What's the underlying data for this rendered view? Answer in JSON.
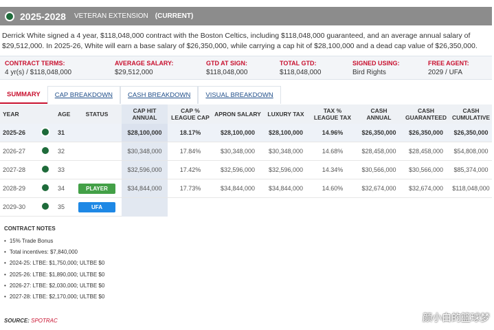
{
  "header": {
    "years": "2025-2028",
    "type": "VETERAN EXTENSION",
    "status": "(CURRENT)"
  },
  "description": "Derrick White signed a 4 year, $118,048,000 contract with the Boston Celtics, including $118,048,000 guaranteed, and an average annual salary of $29,512,000. In 2025-26, White will earn a base salary of $26,350,000, while carrying a cap hit of $28,100,000 and a dead cap value of $26,350,000.",
  "terms": [
    {
      "label": "CONTRACT TERMS:",
      "value": "4 yr(s) / $118,048,000"
    },
    {
      "label": "AVERAGE SALARY:",
      "value": "$29,512,000"
    },
    {
      "label": "GTD AT SIGN:",
      "value": "$118,048,000"
    },
    {
      "label": "TOTAL GTD:",
      "value": "$118,048,000"
    },
    {
      "label": "SIGNED USING:",
      "value": "Bird Rights"
    },
    {
      "label": "FREE AGENT:",
      "value": "2029 / UFA"
    }
  ],
  "tabs": [
    "SUMMARY",
    "CAP BREAKDOWN",
    "CASH BREAKDOWN",
    "VISUAL BREAKDOWN"
  ],
  "table": {
    "columns": [
      "YEAR",
      "AGE",
      "STATUS",
      "CAP HIT\nANNUAL",
      "CAP %\nLEAGUE CAP",
      "APRON SALARY",
      "LUXURY TAX",
      "TAX %\nLEAGUE TAX",
      "CASH\nANNUAL",
      "CASH\nGUARANTEED",
      "CASH\nCUMULATIVE"
    ],
    "rows": [
      {
        "year": "2025-26",
        "age": "31",
        "cells": [
          "$28,100,000",
          "18.17%",
          "$28,100,000",
          "$28,100,000",
          "14.96%",
          "$26,350,000",
          "$26,350,000",
          "$26,350,000"
        ]
      },
      {
        "year": "2026-27",
        "age": "32",
        "cells": [
          "$30,348,000",
          "17.84%",
          "$30,348,000",
          "$30,348,000",
          "14.68%",
          "$28,458,000",
          "$28,458,000",
          "$54,808,000"
        ]
      },
      {
        "year": "2027-28",
        "age": "33",
        "cells": [
          "$32,596,000",
          "17.42%",
          "$32,596,000",
          "$32,596,000",
          "14.34%",
          "$30,566,000",
          "$30,566,000",
          "$85,374,000"
        ]
      },
      {
        "year": "2028-29",
        "age": "34",
        "status": "PLAYER",
        "cells": [
          "$34,844,000",
          "17.73%",
          "$34,844,000",
          "$34,844,000",
          "14.60%",
          "$32,674,000",
          "$32,674,000",
          "$118,048,000"
        ]
      },
      {
        "year": "2029-30",
        "age": "35",
        "status": "UFA"
      }
    ]
  },
  "notes": {
    "title": "CONTRACT NOTES",
    "items": [
      "15% Trade Bonus",
      "Total incentives: $7,840,000",
      "2024-25: LTBE: $1,750,000; ULTBE $0",
      "2025-26: LTBE: $1,890,000; ULTBE $0",
      "2026-27: LTBE: $2,030,000; ULTBE $0",
      "2027-28: LTBE: $2,170,000; ULTBE $0"
    ]
  },
  "source": {
    "label": "SOURCE:",
    "value": "SPOTRAC"
  },
  "watermark": "颜小白的篮球梦"
}
